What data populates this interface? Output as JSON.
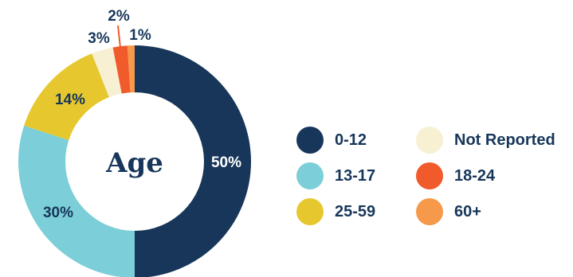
{
  "chart_data": {
    "type": "pie",
    "title": "Age",
    "categories": [
      "0-12",
      "13-17",
      "25-59",
      "Not Reported",
      "18-24",
      "60+"
    ],
    "values": [
      50,
      30,
      14,
      3,
      2,
      1
    ],
    "value_labels": [
      "50%",
      "30%",
      "14%",
      "3%",
      "2%",
      "1%"
    ],
    "colors": [
      "#17365a",
      "#7ccfd8",
      "#e6c82e",
      "#f7f0d2",
      "#f15a2b",
      "#f7994a"
    ],
    "legend_position": "right"
  },
  "legend": [
    {
      "label": "0-12",
      "color": "#17365a"
    },
    {
      "label": "Not Reported",
      "color": "#f7f0d2"
    },
    {
      "label": "13-17",
      "color": "#7ccfd8"
    },
    {
      "label": "18-24",
      "color": "#f15a2b"
    },
    {
      "label": "25-59",
      "color": "#e6c82e"
    },
    {
      "label": "60+",
      "color": "#f7994a"
    }
  ]
}
